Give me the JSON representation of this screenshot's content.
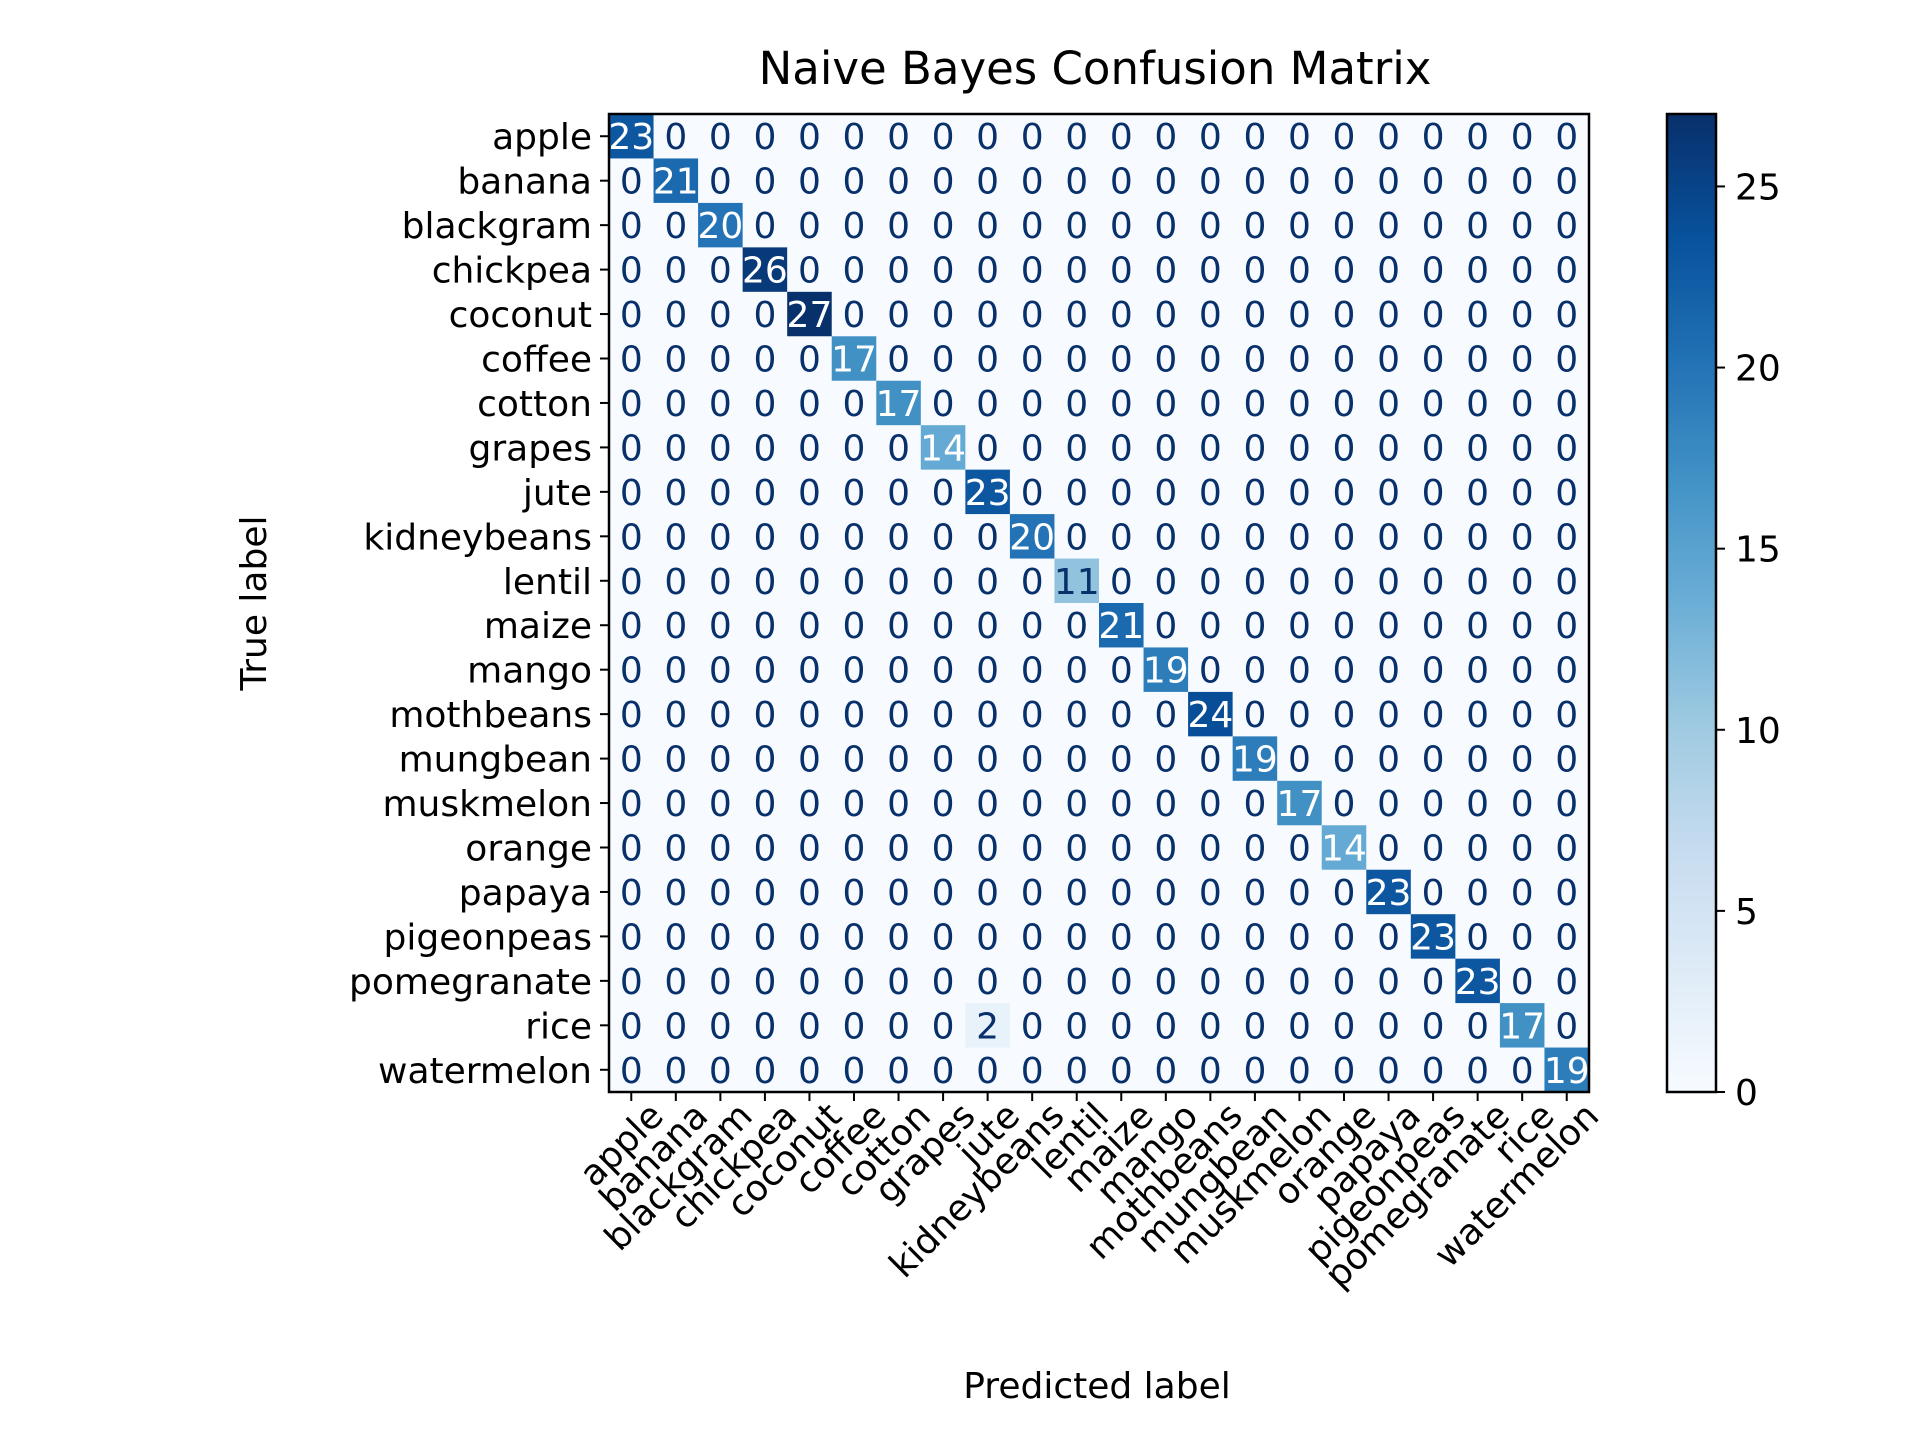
{
  "chart_data": {
    "type": "heatmap",
    "title": "Naive Bayes Confusion Matrix",
    "xlabel": "Predicted label",
    "ylabel": "True label",
    "labels": [
      "apple",
      "banana",
      "blackgram",
      "chickpea",
      "coconut",
      "coffee",
      "cotton",
      "grapes",
      "jute",
      "kidneybeans",
      "lentil",
      "maize",
      "mango",
      "mothbeans",
      "mungbean",
      "muskmelon",
      "orange",
      "papaya",
      "pigeonpeas",
      "pomegranate",
      "rice",
      "watermelon"
    ],
    "matrix": [
      [
        23,
        0,
        0,
        0,
        0,
        0,
        0,
        0,
        0,
        0,
        0,
        0,
        0,
        0,
        0,
        0,
        0,
        0,
        0,
        0,
        0,
        0
      ],
      [
        0,
        21,
        0,
        0,
        0,
        0,
        0,
        0,
        0,
        0,
        0,
        0,
        0,
        0,
        0,
        0,
        0,
        0,
        0,
        0,
        0,
        0
      ],
      [
        0,
        0,
        20,
        0,
        0,
        0,
        0,
        0,
        0,
        0,
        0,
        0,
        0,
        0,
        0,
        0,
        0,
        0,
        0,
        0,
        0,
        0
      ],
      [
        0,
        0,
        0,
        26,
        0,
        0,
        0,
        0,
        0,
        0,
        0,
        0,
        0,
        0,
        0,
        0,
        0,
        0,
        0,
        0,
        0,
        0
      ],
      [
        0,
        0,
        0,
        0,
        27,
        0,
        0,
        0,
        0,
        0,
        0,
        0,
        0,
        0,
        0,
        0,
        0,
        0,
        0,
        0,
        0,
        0
      ],
      [
        0,
        0,
        0,
        0,
        0,
        17,
        0,
        0,
        0,
        0,
        0,
        0,
        0,
        0,
        0,
        0,
        0,
        0,
        0,
        0,
        0,
        0
      ],
      [
        0,
        0,
        0,
        0,
        0,
        0,
        17,
        0,
        0,
        0,
        0,
        0,
        0,
        0,
        0,
        0,
        0,
        0,
        0,
        0,
        0,
        0
      ],
      [
        0,
        0,
        0,
        0,
        0,
        0,
        0,
        14,
        0,
        0,
        0,
        0,
        0,
        0,
        0,
        0,
        0,
        0,
        0,
        0,
        0,
        0
      ],
      [
        0,
        0,
        0,
        0,
        0,
        0,
        0,
        0,
        23,
        0,
        0,
        0,
        0,
        0,
        0,
        0,
        0,
        0,
        0,
        0,
        0,
        0
      ],
      [
        0,
        0,
        0,
        0,
        0,
        0,
        0,
        0,
        0,
        20,
        0,
        0,
        0,
        0,
        0,
        0,
        0,
        0,
        0,
        0,
        0,
        0
      ],
      [
        0,
        0,
        0,
        0,
        0,
        0,
        0,
        0,
        0,
        0,
        11,
        0,
        0,
        0,
        0,
        0,
        0,
        0,
        0,
        0,
        0,
        0
      ],
      [
        0,
        0,
        0,
        0,
        0,
        0,
        0,
        0,
        0,
        0,
        0,
        21,
        0,
        0,
        0,
        0,
        0,
        0,
        0,
        0,
        0,
        0
      ],
      [
        0,
        0,
        0,
        0,
        0,
        0,
        0,
        0,
        0,
        0,
        0,
        0,
        19,
        0,
        0,
        0,
        0,
        0,
        0,
        0,
        0,
        0
      ],
      [
        0,
        0,
        0,
        0,
        0,
        0,
        0,
        0,
        0,
        0,
        0,
        0,
        0,
        24,
        0,
        0,
        0,
        0,
        0,
        0,
        0,
        0
      ],
      [
        0,
        0,
        0,
        0,
        0,
        0,
        0,
        0,
        0,
        0,
        0,
        0,
        0,
        0,
        19,
        0,
        0,
        0,
        0,
        0,
        0,
        0
      ],
      [
        0,
        0,
        0,
        0,
        0,
        0,
        0,
        0,
        0,
        0,
        0,
        0,
        0,
        0,
        0,
        17,
        0,
        0,
        0,
        0,
        0,
        0
      ],
      [
        0,
        0,
        0,
        0,
        0,
        0,
        0,
        0,
        0,
        0,
        0,
        0,
        0,
        0,
        0,
        0,
        14,
        0,
        0,
        0,
        0,
        0
      ],
      [
        0,
        0,
        0,
        0,
        0,
        0,
        0,
        0,
        0,
        0,
        0,
        0,
        0,
        0,
        0,
        0,
        0,
        23,
        0,
        0,
        0,
        0
      ],
      [
        0,
        0,
        0,
        0,
        0,
        0,
        0,
        0,
        0,
        0,
        0,
        0,
        0,
        0,
        0,
        0,
        0,
        0,
        23,
        0,
        0,
        0
      ],
      [
        0,
        0,
        0,
        0,
        0,
        0,
        0,
        0,
        0,
        0,
        0,
        0,
        0,
        0,
        0,
        0,
        0,
        0,
        0,
        23,
        0,
        0
      ],
      [
        0,
        0,
        0,
        0,
        0,
        0,
        0,
        0,
        2,
        0,
        0,
        0,
        0,
        0,
        0,
        0,
        0,
        0,
        0,
        0,
        17,
        0
      ],
      [
        0,
        0,
        0,
        0,
        0,
        0,
        0,
        0,
        0,
        0,
        0,
        0,
        0,
        0,
        0,
        0,
        0,
        0,
        0,
        0,
        0,
        19
      ]
    ],
    "colormap": "Blues",
    "vmin": 0,
    "vmax": 27,
    "colorbar_ticks": [
      0,
      5,
      10,
      15,
      20,
      25
    ],
    "xtick_rotation_deg": 45,
    "grid": false
  }
}
